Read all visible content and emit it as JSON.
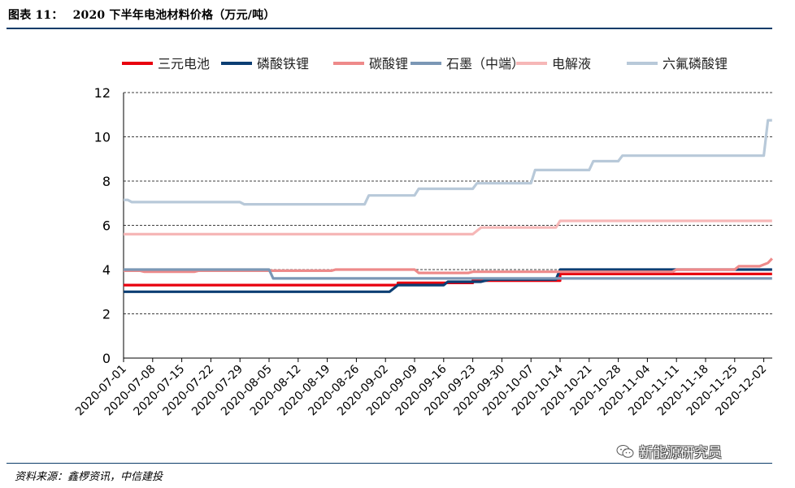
{
  "figure": {
    "number": "图表 11：",
    "title": "2020 下半年电池材料价格（万元/吨）"
  },
  "source": "资料来源：鑫椤资讯，中信建投",
  "watermark": "新能源研究员",
  "watermark_icon": "wechat-icon",
  "chart_data": {
    "type": "line",
    "title": "2020 下半年电池材料价格（万元/吨）",
    "xlabel": "",
    "ylabel": "",
    "ylim": [
      0,
      12
    ],
    "yticks": [
      0,
      2,
      4,
      6,
      8,
      10,
      12
    ],
    "grid": true,
    "legend_position": "top",
    "categories": [
      "2020-07-01",
      "2020-07-08",
      "2020-07-15",
      "2020-07-22",
      "2020-07-29",
      "2020-08-05",
      "2020-08-12",
      "2020-08-19",
      "2020-08-26",
      "2020-09-02",
      "2020-09-09",
      "2020-09-16",
      "2020-09-23",
      "2020-09-30",
      "2020-10-07",
      "2020-10-14",
      "2020-10-21",
      "2020-10-28",
      "2020-11-04",
      "2020-11-11",
      "2020-11-18",
      "2020-11-25",
      "2020-12-02"
    ],
    "series": [
      {
        "name": "三元电池",
        "color": "#e8000e",
        "points": [
          [
            "2020-07-01",
            3.3
          ],
          [
            "2020-09-05",
            3.3
          ],
          [
            "2020-09-05",
            3.4
          ],
          [
            "2020-09-23",
            3.4
          ],
          [
            "2020-09-23",
            3.5
          ],
          [
            "2020-10-14",
            3.5
          ],
          [
            "2020-10-14",
            3.8
          ],
          [
            "2020-12-04",
            3.8
          ]
        ]
      },
      {
        "name": "磷酸铁锂",
        "color": "#0c3e73",
        "points": [
          [
            "2020-07-01",
            3.0
          ],
          [
            "2020-09-03",
            3.0
          ],
          [
            "2020-09-05",
            3.3
          ],
          [
            "2020-09-16",
            3.3
          ],
          [
            "2020-09-17",
            3.45
          ],
          [
            "2020-09-25",
            3.45
          ],
          [
            "2020-09-27",
            3.55
          ],
          [
            "2020-10-13",
            3.55
          ],
          [
            "2020-10-14",
            4.0
          ],
          [
            "2020-12-04",
            4.0
          ]
        ]
      },
      {
        "name": "碳酸锂",
        "color": "#ee8a8a",
        "points": [
          [
            "2020-07-01",
            3.95
          ],
          [
            "2020-07-05",
            3.95
          ],
          [
            "2020-07-06",
            3.9
          ],
          [
            "2020-07-18",
            3.9
          ],
          [
            "2020-07-19",
            3.95
          ],
          [
            "2020-08-20",
            3.95
          ],
          [
            "2020-08-21",
            4.0
          ],
          [
            "2020-09-09",
            4.0
          ],
          [
            "2020-09-10",
            3.85
          ],
          [
            "2020-09-22",
            3.85
          ],
          [
            "2020-09-23",
            3.9
          ],
          [
            "2020-11-10",
            3.9
          ],
          [
            "2020-11-11",
            4.0
          ],
          [
            "2020-11-25",
            4.0
          ],
          [
            "2020-11-26",
            4.15
          ],
          [
            "2020-12-01",
            4.15
          ],
          [
            "2020-12-03",
            4.3
          ],
          [
            "2020-12-04",
            4.5
          ]
        ]
      },
      {
        "name": "石墨（中端）",
        "color": "#7b97b5",
        "points": [
          [
            "2020-07-01",
            4.0
          ],
          [
            "2020-08-05",
            4.0
          ],
          [
            "2020-08-06",
            3.6
          ],
          [
            "2020-12-04",
            3.6
          ]
        ]
      },
      {
        "name": "电解液",
        "color": "#f6b7b7",
        "points": [
          [
            "2020-07-01",
            5.6
          ],
          [
            "2020-09-23",
            5.6
          ],
          [
            "2020-09-25",
            5.9
          ],
          [
            "2020-10-13",
            5.9
          ],
          [
            "2020-10-14",
            6.2
          ],
          [
            "2020-12-04",
            6.2
          ]
        ]
      },
      {
        "name": "六氟磷酸锂",
        "color": "#b8c9d9",
        "points": [
          [
            "2020-07-01",
            7.15
          ],
          [
            "2020-07-02",
            7.15
          ],
          [
            "2020-07-03",
            7.05
          ],
          [
            "2020-07-29",
            7.05
          ],
          [
            "2020-07-30",
            6.95
          ],
          [
            "2020-08-28",
            6.95
          ],
          [
            "2020-08-29",
            7.35
          ],
          [
            "2020-09-09",
            7.35
          ],
          [
            "2020-09-10",
            7.65
          ],
          [
            "2020-09-23",
            7.65
          ],
          [
            "2020-09-24",
            7.9
          ],
          [
            "2020-10-07",
            7.9
          ],
          [
            "2020-10-08",
            8.5
          ],
          [
            "2020-10-21",
            8.5
          ],
          [
            "2020-10-22",
            8.9
          ],
          [
            "2020-10-28",
            8.9
          ],
          [
            "2020-10-29",
            9.15
          ],
          [
            "2020-12-02",
            9.15
          ],
          [
            "2020-12-03",
            10.75
          ],
          [
            "2020-12-04",
            10.75
          ]
        ]
      }
    ]
  }
}
